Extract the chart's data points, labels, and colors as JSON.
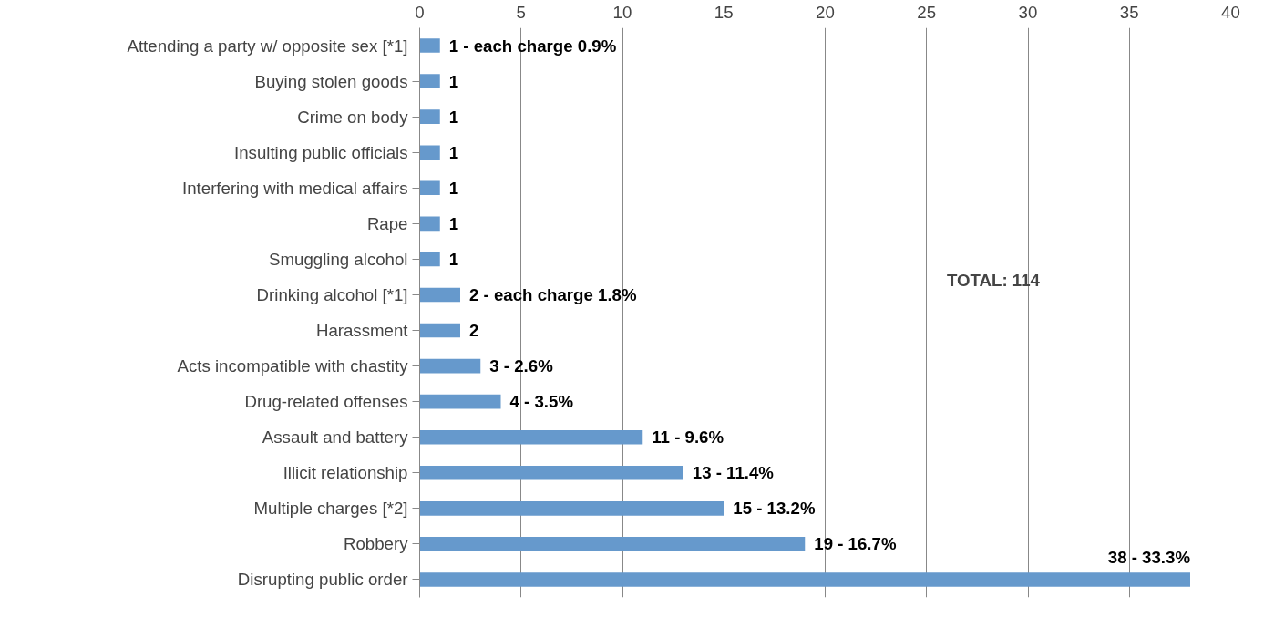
{
  "chart_data": {
    "type": "bar",
    "orientation": "horizontal",
    "categories": [
      "Attending a party w/ opposite sex [*1]",
      "Buying stolen goods",
      "Crime on body",
      "Insulting public officials",
      "Interfering with medical affairs",
      "Rape",
      "Smuggling alcohol",
      "Drinking alcohol [*1]",
      "Harassment",
      "Acts incompatible with chastity",
      "Drug-related offenses",
      "Assault and battery",
      "Illicit relationship",
      "Multiple charges [*2]",
      "Robbery",
      "Disrupting public order"
    ],
    "values": [
      1,
      1,
      1,
      1,
      1,
      1,
      1,
      2,
      2,
      3,
      4,
      11,
      13,
      15,
      19,
      38
    ],
    "value_labels": [
      "1 - each charge 0.9%",
      "1",
      "1",
      "1",
      "1",
      "1",
      "1",
      "2 - each charge 1.8%",
      "2",
      "3 - 2.6%",
      "4 - 3.5%",
      "11 - 9.6%",
      "13 - 11.4%",
      "15 - 13.2%",
      "19 - 16.7%",
      "38 - 33.3%"
    ],
    "color": "#6699cc",
    "xlim": [
      0,
      40
    ],
    "xticks": [
      0,
      5,
      10,
      15,
      20,
      25,
      30,
      35,
      40
    ],
    "grid": "x",
    "annotations": [
      "TOTAL: 114"
    ]
  }
}
